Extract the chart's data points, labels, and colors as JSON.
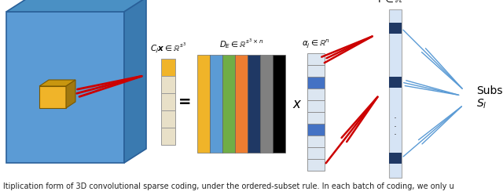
{
  "bg_color": "#ffffff",
  "caption_text": "ltiplication form of 3D convolutional sparse coding, under the ordered-subset rule. In each batch of coding, we only u",
  "cube_face_front": "#5b9bd5",
  "cube_face_top": "#4a90c4",
  "cube_face_right": "#3a7ab0",
  "small_cube_front": "#f0b429",
  "small_cube_top": "#c8960f",
  "small_cube_right": "#a07810",
  "col_vector_colors": [
    "#f0b429",
    "#e8e0c8",
    "#e8e0c8",
    "#e8e0c8",
    "#e8e0c8"
  ],
  "dict_colors": [
    "#f0b429",
    "#5b9bd5",
    "#70ad47",
    "#ed7d31",
    "#1f3864",
    "#808080",
    "#000000"
  ],
  "alpha_colors": [
    "#dce6f1",
    "#dce6f1",
    "#4472c4",
    "#dce6f1",
    "#dce6f1",
    "#dce6f1",
    "#4472c4",
    "#dce6f1",
    "#dce6f1",
    "#dce6f1"
  ],
  "gamma_color_light": "#d6e4f5",
  "gamma_color_dark": "#1f3864",
  "label_cjx": "$\\boldsymbol{C_j}\\boldsymbol{x}\\in\\mathbb{R}^{s^3}$",
  "label_DE": "$\\boldsymbol{D_E}\\in\\mathbb{R}^{s^3\\times n}$",
  "label_alpha": "$\\boldsymbol{\\alpha_j}\\in\\mathbb{R}^{n}$",
  "label_gamma": "$\\boldsymbol{\\mathit{\\Gamma}}\\in\\mathbb{R}^{Nn}$",
  "label_subset": "Subset\n$S_l$",
  "arrow_red": "#cc0000",
  "arrow_blue": "#5b9bd5",
  "text_color": "#000000",
  "fig_width": 6.4,
  "fig_height": 2.49,
  "dpi": 100
}
